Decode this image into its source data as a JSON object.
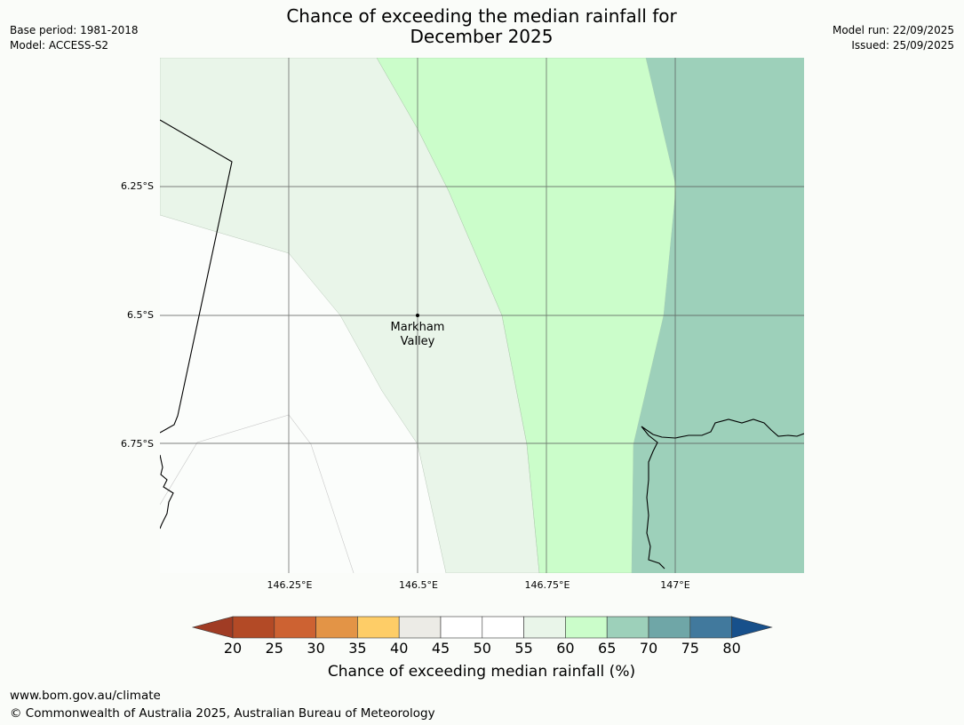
{
  "title_line1": "Chance of exceeding the median rainfall for",
  "title_line2": "December 2025",
  "meta_left": {
    "base_period": "Base period: 1981-2018",
    "model": "Model: ACCESS-S2"
  },
  "meta_right": {
    "model_run": "Model run: 22/09/2025",
    "issued": "Issued: 25/09/2025"
  },
  "map": {
    "lat_labels": [
      "6.25°S",
      "6.5°S",
      "6.75°S"
    ],
    "lon_labels": [
      "146.25°E",
      "146.5°E",
      "146.75°E",
      "147°E"
    ],
    "place": {
      "name_line1": "Markham",
      "name_line2": "Valley"
    },
    "region_colors": {
      "c55_60": "#e9f5e9",
      "c60_65": "#cbfdca",
      "c65_70": "#9dd0ba"
    }
  },
  "legend": {
    "ticks": [
      "20",
      "25",
      "30",
      "35",
      "40",
      "45",
      "50",
      "55",
      "60",
      "65",
      "70",
      "75",
      "80"
    ],
    "colors": [
      "#a03c24",
      "#b34a26",
      "#cd6232",
      "#e39446",
      "#fecd67",
      "#ecebe6",
      "#ffffff",
      "#ffffff",
      "#e9f5e9",
      "#cbfdca",
      "#9dd0ba",
      "#6fa6a7",
      "#41799d",
      "#17508b"
    ],
    "label": "Chance of exceeding median rainfall (%)"
  },
  "footer": {
    "url": "www.bom.gov.au/climate",
    "copyright": "© Commonwealth of Australia 2025, Australian Bureau of Meteorology"
  }
}
